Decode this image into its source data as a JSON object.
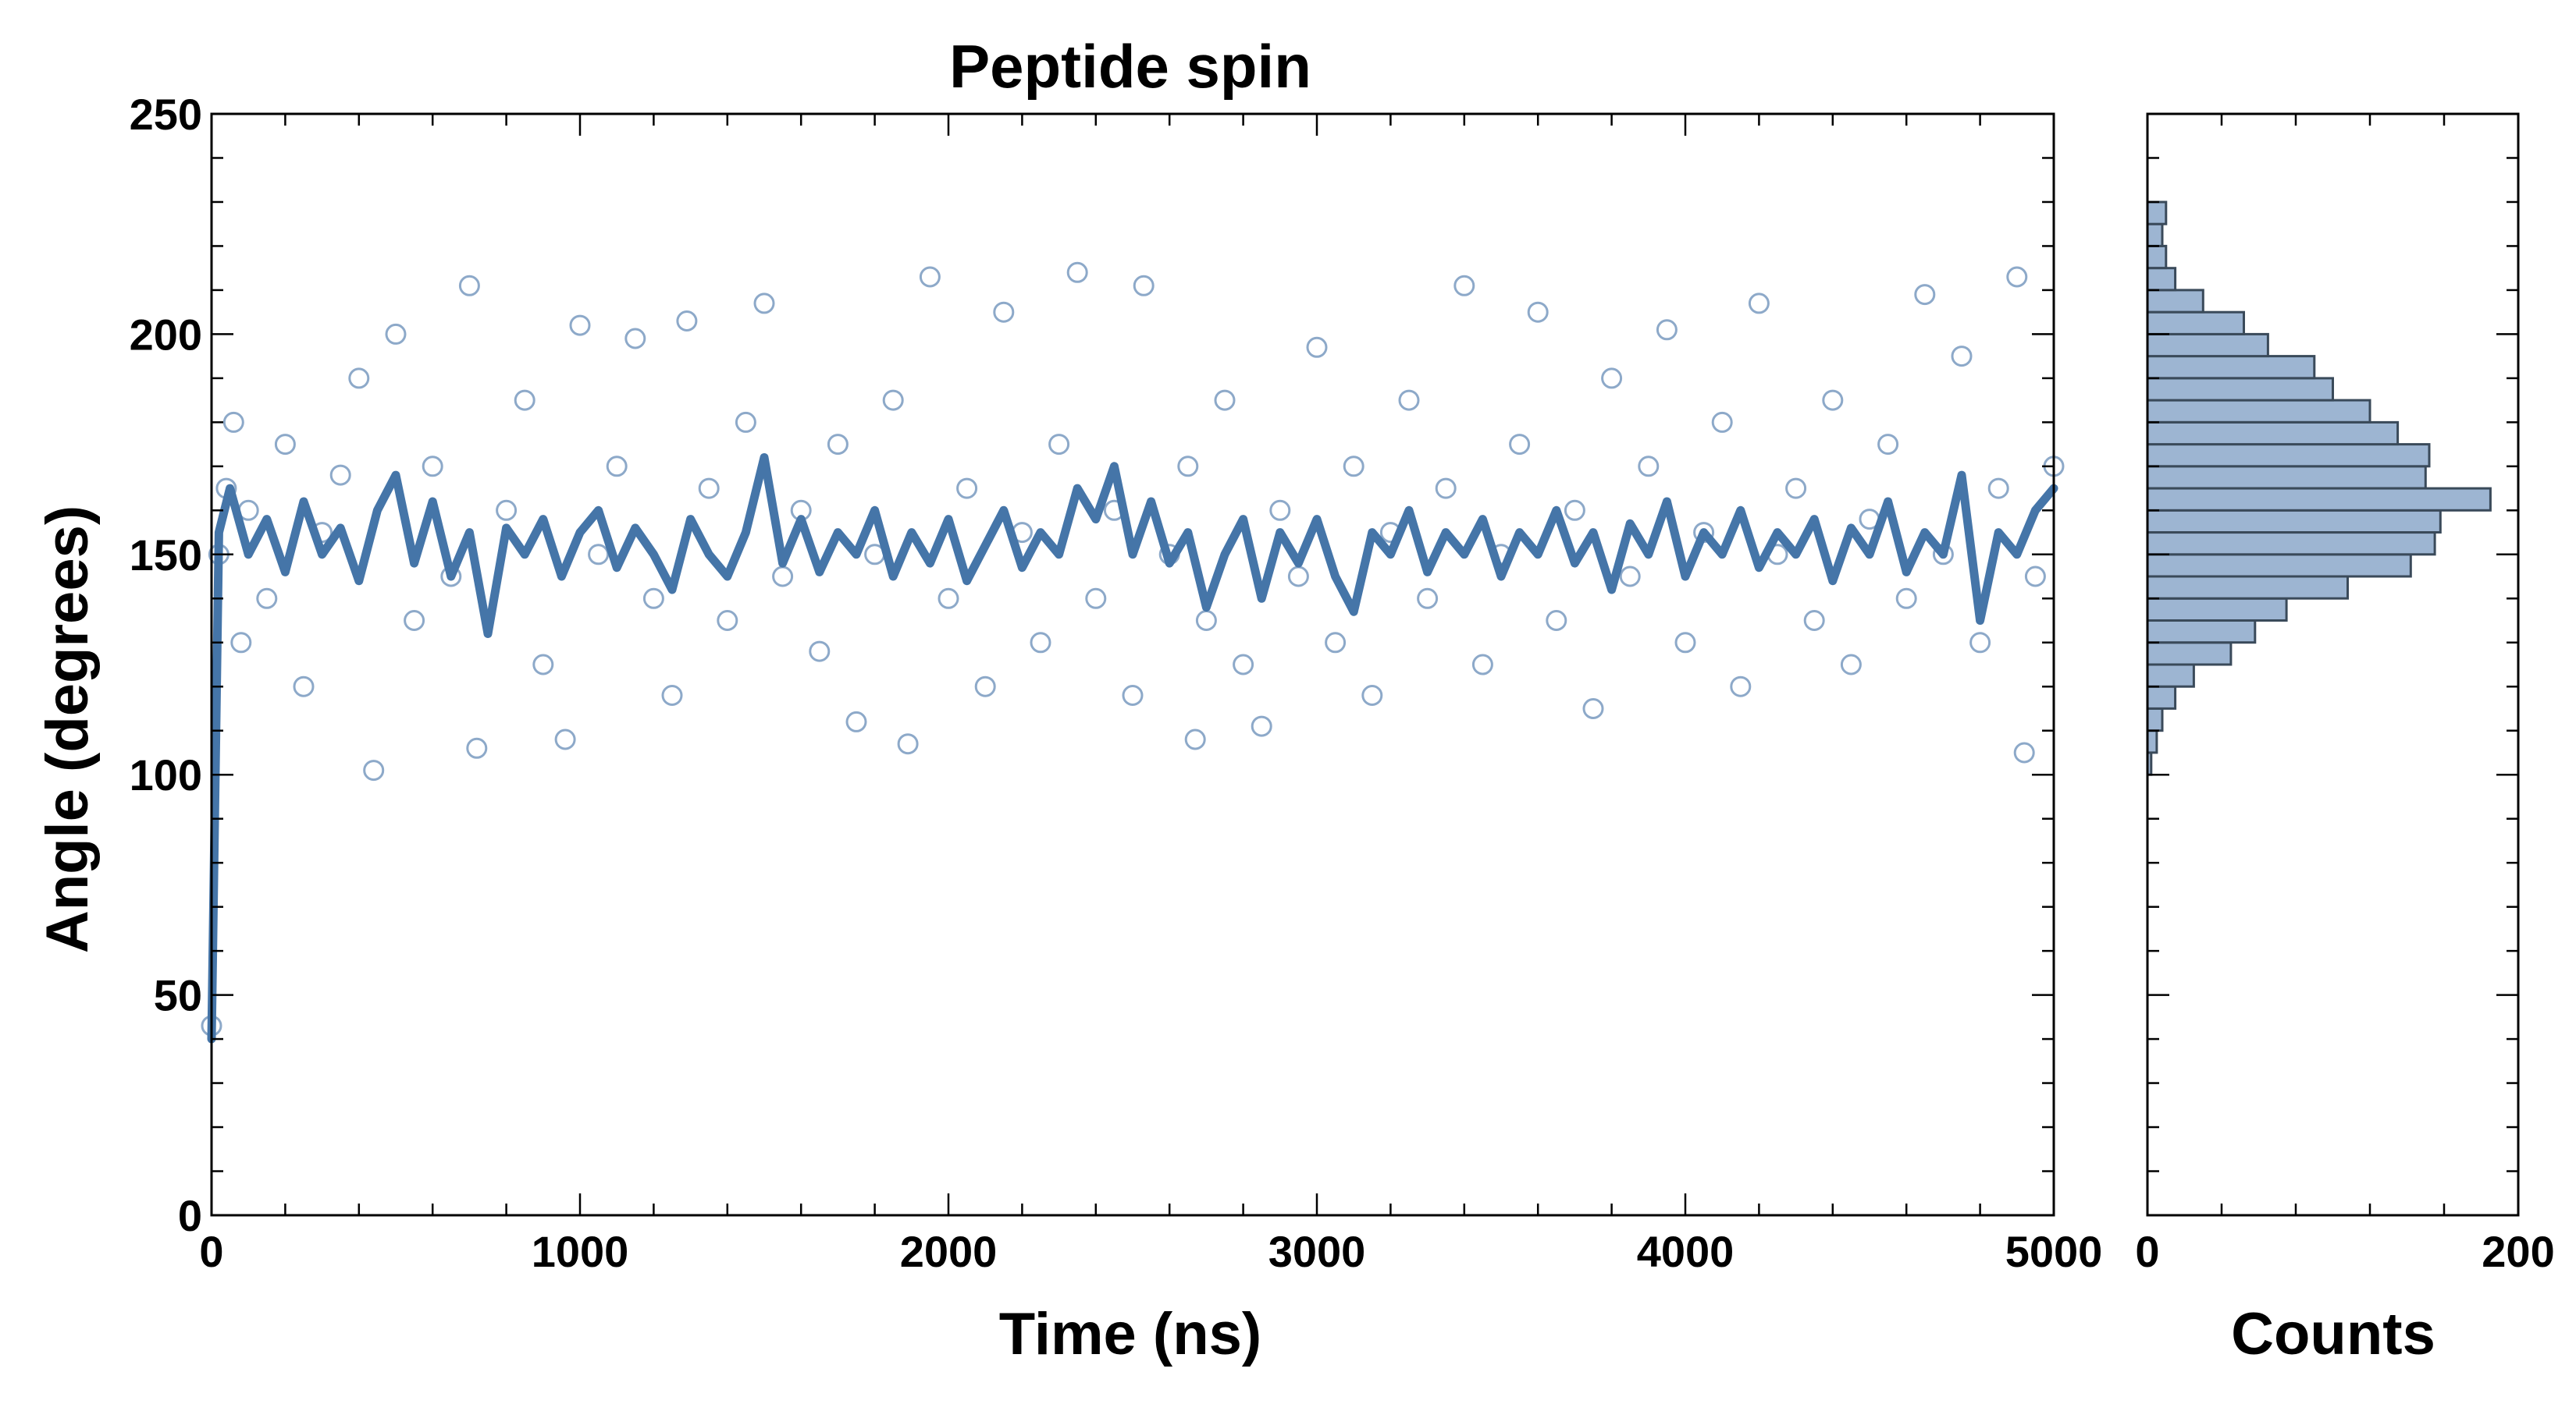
{
  "chart_data": {
    "type": "scatter",
    "title": "Peptide spin",
    "xlabel": "Time (ns)",
    "ylabel": "Angle (degrees)",
    "xlim": [
      0,
      5000
    ],
    "ylim": [
      0,
      250
    ],
    "xticks": [
      0,
      1000,
      2000,
      3000,
      4000,
      5000
    ],
    "yticks": [
      0,
      50,
      100,
      150,
      200,
      250
    ],
    "grid": false,
    "scatter_style": {
      "marker": "hollow-circle",
      "color": "#8DA9C9"
    },
    "line_color": "#4575A8",
    "series": [
      {
        "kind": "scatter",
        "points": [
          [
            0,
            43
          ],
          [
            20,
            150
          ],
          [
            40,
            165
          ],
          [
            60,
            180
          ],
          [
            80,
            130
          ],
          [
            100,
            160
          ],
          [
            150,
            140
          ],
          [
            200,
            175
          ],
          [
            250,
            120
          ],
          [
            300,
            155
          ],
          [
            350,
            168
          ],
          [
            400,
            190
          ],
          [
            440,
            101
          ],
          [
            500,
            200
          ],
          [
            550,
            135
          ],
          [
            600,
            170
          ],
          [
            650,
            145
          ],
          [
            700,
            211
          ],
          [
            720,
            106
          ],
          [
            800,
            160
          ],
          [
            850,
            185
          ],
          [
            900,
            125
          ],
          [
            960,
            108
          ],
          [
            1000,
            202
          ],
          [
            1050,
            150
          ],
          [
            1100,
            170
          ],
          [
            1150,
            199
          ],
          [
            1200,
            140
          ],
          [
            1250,
            118
          ],
          [
            1290,
            203
          ],
          [
            1350,
            165
          ],
          [
            1400,
            135
          ],
          [
            1450,
            180
          ],
          [
            1500,
            207
          ],
          [
            1550,
            145
          ],
          [
            1600,
            160
          ],
          [
            1650,
            128
          ],
          [
            1700,
            175
          ],
          [
            1750,
            112
          ],
          [
            1800,
            150
          ],
          [
            1850,
            185
          ],
          [
            1890,
            107
          ],
          [
            1950,
            213
          ],
          [
            2000,
            140
          ],
          [
            2050,
            165
          ],
          [
            2100,
            120
          ],
          [
            2150,
            205
          ],
          [
            2200,
            155
          ],
          [
            2250,
            130
          ],
          [
            2300,
            175
          ],
          [
            2350,
            214
          ],
          [
            2400,
            140
          ],
          [
            2450,
            160
          ],
          [
            2500,
            118
          ],
          [
            2530,
            211
          ],
          [
            2600,
            150
          ],
          [
            2650,
            170
          ],
          [
            2670,
            108
          ],
          [
            2700,
            135
          ],
          [
            2750,
            185
          ],
          [
            2800,
            125
          ],
          [
            2850,
            111
          ],
          [
            2900,
            160
          ],
          [
            2950,
            145
          ],
          [
            3000,
            197
          ],
          [
            3050,
            130
          ],
          [
            3100,
            170
          ],
          [
            3150,
            118
          ],
          [
            3200,
            155
          ],
          [
            3250,
            185
          ],
          [
            3300,
            140
          ],
          [
            3350,
            165
          ],
          [
            3400,
            211
          ],
          [
            3450,
            125
          ],
          [
            3500,
            150
          ],
          [
            3550,
            175
          ],
          [
            3600,
            205
          ],
          [
            3650,
            135
          ],
          [
            3700,
            160
          ],
          [
            3750,
            115
          ],
          [
            3800,
            190
          ],
          [
            3850,
            145
          ],
          [
            3900,
            170
          ],
          [
            3950,
            201
          ],
          [
            4000,
            130
          ],
          [
            4050,
            155
          ],
          [
            4100,
            180
          ],
          [
            4150,
            120
          ],
          [
            4200,
            207
          ],
          [
            4250,
            150
          ],
          [
            4300,
            165
          ],
          [
            4350,
            135
          ],
          [
            4400,
            185
          ],
          [
            4450,
            125
          ],
          [
            4500,
            158
          ],
          [
            4550,
            175
          ],
          [
            4600,
            140
          ],
          [
            4650,
            209
          ],
          [
            4700,
            150
          ],
          [
            4750,
            195
          ],
          [
            4800,
            130
          ],
          [
            4850,
            165
          ],
          [
            4900,
            213
          ],
          [
            4920,
            105
          ],
          [
            4950,
            145
          ],
          [
            5000,
            170
          ]
        ]
      },
      {
        "kind": "line",
        "points": [
          [
            0,
            40
          ],
          [
            20,
            155
          ],
          [
            50,
            165
          ],
          [
            100,
            150
          ],
          [
            150,
            158
          ],
          [
            200,
            146
          ],
          [
            250,
            162
          ],
          [
            300,
            150
          ],
          [
            350,
            156
          ],
          [
            400,
            144
          ],
          [
            450,
            160
          ],
          [
            500,
            168
          ],
          [
            550,
            148
          ],
          [
            600,
            162
          ],
          [
            650,
            145
          ],
          [
            700,
            155
          ],
          [
            750,
            132
          ],
          [
            800,
            156
          ],
          [
            850,
            150
          ],
          [
            900,
            158
          ],
          [
            950,
            145
          ],
          [
            1000,
            155
          ],
          [
            1050,
            160
          ],
          [
            1100,
            147
          ],
          [
            1150,
            156
          ],
          [
            1200,
            150
          ],
          [
            1250,
            142
          ],
          [
            1300,
            158
          ],
          [
            1350,
            150
          ],
          [
            1400,
            145
          ],
          [
            1450,
            155
          ],
          [
            1500,
            172
          ],
          [
            1550,
            148
          ],
          [
            1600,
            158
          ],
          [
            1650,
            146
          ],
          [
            1700,
            155
          ],
          [
            1750,
            150
          ],
          [
            1800,
            160
          ],
          [
            1850,
            145
          ],
          [
            1900,
            155
          ],
          [
            1950,
            148
          ],
          [
            2000,
            158
          ],
          [
            2050,
            144
          ],
          [
            2100,
            152
          ],
          [
            2150,
            160
          ],
          [
            2200,
            147
          ],
          [
            2250,
            155
          ],
          [
            2300,
            150
          ],
          [
            2350,
            165
          ],
          [
            2400,
            158
          ],
          [
            2450,
            170
          ],
          [
            2500,
            150
          ],
          [
            2550,
            162
          ],
          [
            2600,
            148
          ],
          [
            2650,
            155
          ],
          [
            2700,
            138
          ],
          [
            2750,
            150
          ],
          [
            2800,
            158
          ],
          [
            2850,
            140
          ],
          [
            2900,
            155
          ],
          [
            2950,
            148
          ],
          [
            3000,
            158
          ],
          [
            3050,
            145
          ],
          [
            3100,
            137
          ],
          [
            3150,
            155
          ],
          [
            3200,
            150
          ],
          [
            3250,
            160
          ],
          [
            3300,
            146
          ],
          [
            3350,
            155
          ],
          [
            3400,
            150
          ],
          [
            3450,
            158
          ],
          [
            3500,
            145
          ],
          [
            3550,
            155
          ],
          [
            3600,
            150
          ],
          [
            3650,
            160
          ],
          [
            3700,
            148
          ],
          [
            3750,
            155
          ],
          [
            3800,
            142
          ],
          [
            3850,
            157
          ],
          [
            3900,
            150
          ],
          [
            3950,
            162
          ],
          [
            4000,
            145
          ],
          [
            4050,
            155
          ],
          [
            4100,
            150
          ],
          [
            4150,
            160
          ],
          [
            4200,
            147
          ],
          [
            4250,
            155
          ],
          [
            4300,
            150
          ],
          [
            4350,
            158
          ],
          [
            4400,
            144
          ],
          [
            4450,
            156
          ],
          [
            4500,
            150
          ],
          [
            4550,
            162
          ],
          [
            4600,
            146
          ],
          [
            4650,
            155
          ],
          [
            4700,
            150
          ],
          [
            4750,
            168
          ],
          [
            4800,
            135
          ],
          [
            4850,
            155
          ],
          [
            4900,
            150
          ],
          [
            4950,
            160
          ],
          [
            5000,
            165
          ]
        ]
      }
    ],
    "histogram": {
      "orientation": "horizontal",
      "xlabel": "Counts",
      "xlim": [
        0,
        200
      ],
      "xticks": [
        0,
        200
      ],
      "color": "#9DB5D2",
      "edge_color": "#3A4A5A",
      "bin_width": 5,
      "bins": [
        [
          100,
          2
        ],
        [
          105,
          5
        ],
        [
          110,
          8
        ],
        [
          115,
          15
        ],
        [
          120,
          25
        ],
        [
          125,
          45
        ],
        [
          130,
          58
        ],
        [
          135,
          75
        ],
        [
          140,
          108
        ],
        [
          145,
          142
        ],
        [
          150,
          155
        ],
        [
          155,
          158
        ],
        [
          160,
          185
        ],
        [
          165,
          150
        ],
        [
          170,
          152
        ],
        [
          175,
          135
        ],
        [
          180,
          120
        ],
        [
          185,
          100
        ],
        [
          190,
          90
        ],
        [
          195,
          65
        ],
        [
          200,
          52
        ],
        [
          205,
          30
        ],
        [
          210,
          15
        ],
        [
          215,
          10
        ],
        [
          220,
          8
        ],
        [
          225,
          10
        ]
      ]
    }
  }
}
